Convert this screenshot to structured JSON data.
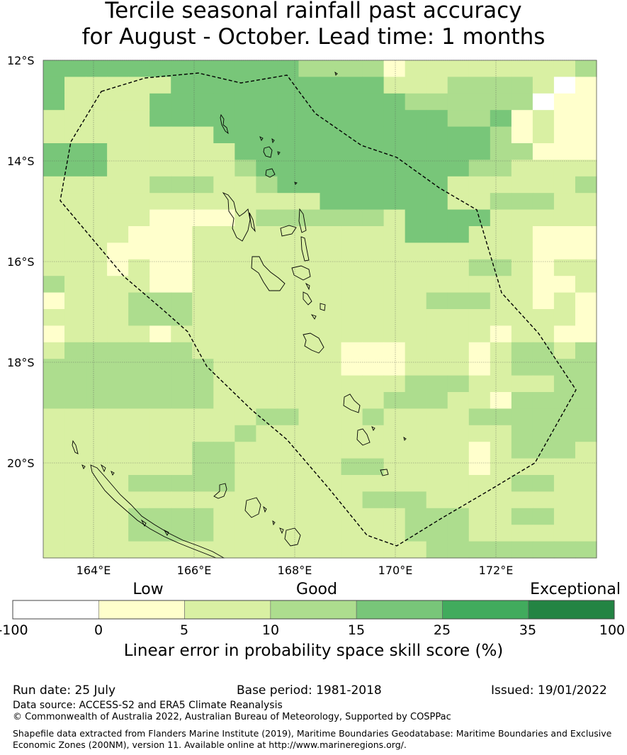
{
  "title_line1": "Tercile seasonal rainfall past accuracy",
  "title_line2": "for August - October. Lead time: 1 months",
  "lat_labels": [
    "12°S",
    "14°S",
    "16°S",
    "18°S",
    "20°S"
  ],
  "lon_labels": [
    "164°E",
    "166°E",
    "168°E",
    "170°E",
    "172°E"
  ],
  "category_labels": [
    "Low",
    "Good",
    "Exceptional"
  ],
  "colorbar": {
    "ticks": [
      "-100",
      "0",
      "5",
      "10",
      "15",
      "25",
      "35",
      "100"
    ],
    "colors": [
      "#ffffff",
      "#ffffcc",
      "#d9f0a3",
      "#addd8e",
      "#78c679",
      "#41ab5d",
      "#238443"
    ],
    "title": "Linear error in probability space skill score (%)"
  },
  "grid": {
    "lon_range": [
      163,
      174
    ],
    "lat_range": [
      -12,
      -21.9
    ],
    "legend": "0=-100..0 white, 1=0-5, 2=5-10, 3=10-15, 4=15-25",
    "rows": [
      "44444444444433331222222223",
      "42222244444444442223333201",
      "42222444444444444333333011",
      "22222444444444444443341211",
      "22222222444444444444431211",
      "44422222244444444444433111",
      "44422222234444444444332222",
      "22222333223444444442222223",
      "22222222222224444442233322",
      "22222111123333332444422222",
      "22221112222222222444222111",
      "22211112222222222222222111",
      "22212112222222222222332122",
      "32222112222222222222222112",
      "12223332222222222233322121",
      "22223332222222222222222221",
      "12222122222222222222212211",
      "23333332222222111222123323",
      "33333333222222111222123333",
      "33333333222222222333222233",
      "33333333222222223332213333",
      "22222222223322232222333333",
      "22222222232222222222223333",
      "22222223322222222222123332",
      "22222223322222332222122222",
      "22223333322222222222223322",
      "22222222222222233322222222",
      "22223333222222222333223322",
      "22223333222222222333222222",
      "22222222222222222233333333"
    ]
  },
  "meta": {
    "run_date": "Run date: 25 July",
    "base_period": "Base period: 1981-2018",
    "issued": "Issued: 19/01/2022",
    "data_source": "Data source: ACCESS-S2 and ERA5 Climate Reanalysis",
    "copyright": "© Commonwealth of Australia 2022, Australian Bureau of Meteorology, Supported by COSPPac",
    "shapefile": "Shapefile data extracted from Flanders Marine Institute (2019), Maritime Boundaries Geodatabase: Maritime Boundaries and Exclusive Economic Zones (200NM), version 11. Available online at http://www.marineregions.org/."
  }
}
